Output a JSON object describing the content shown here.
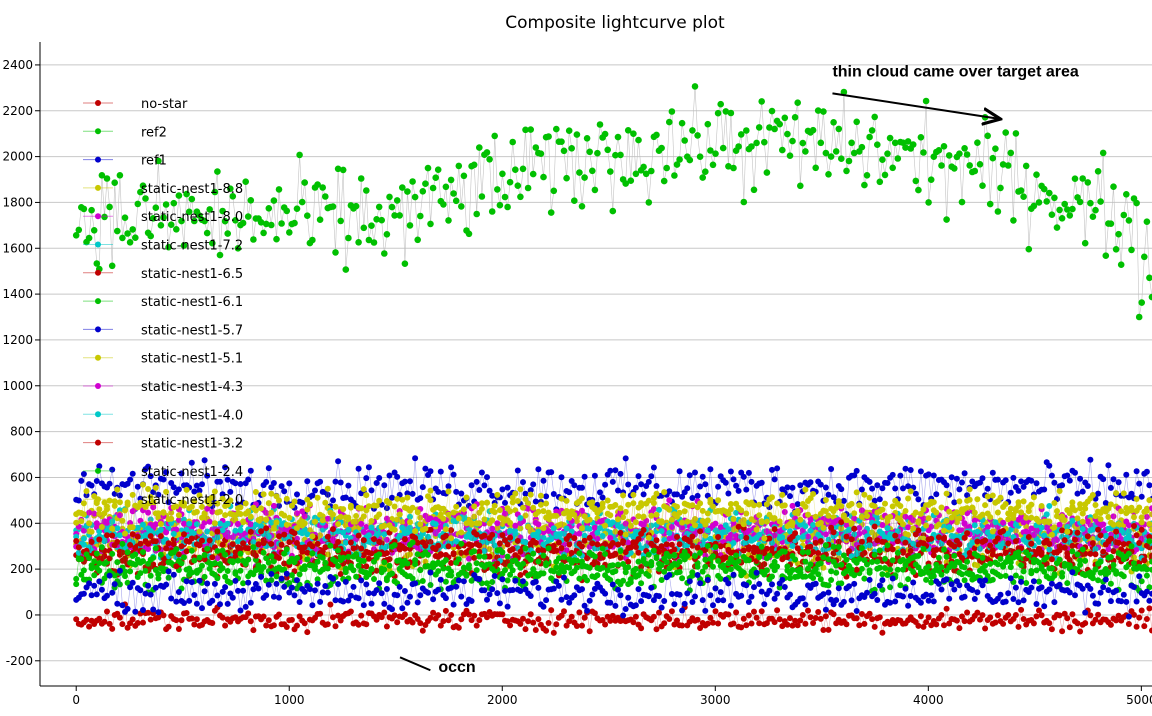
{
  "chart_data": {
    "type": "line",
    "title": "Composite lightcurve plot",
    "xlabel": "",
    "ylabel": "",
    "xlim": [
      -170,
      5050
    ],
    "ylim": [
      -310,
      2500
    ],
    "x_ticks": [
      0,
      1000,
      2000,
      3000,
      4000,
      5000
    ],
    "y_ticks": [
      -200,
      0,
      200,
      400,
      600,
      800,
      1000,
      1200,
      1400,
      1600,
      1800,
      2000,
      2200,
      2400
    ],
    "grid": true,
    "legend_position": "top-left",
    "annotations": [
      {
        "text": "thin cloud came over target area",
        "x": 3550,
        "y": 2350,
        "arrow_to": [
          4330,
          2165
        ]
      },
      {
        "text": "occn",
        "x": 1700,
        "y": -250,
        "arrow_to": [
          1520,
          -185
        ]
      }
    ],
    "series": [
      {
        "name": "no-star",
        "color": "#c00000",
        "marker": "dot",
        "shape": "flat",
        "base": -20,
        "noise": 35,
        "drift": 0
      },
      {
        "name": "ref2",
        "color": "#00c000",
        "marker": "dot",
        "shape": "hump",
        "base": 1750,
        "noise": 160,
        "drift": 330
      },
      {
        "name": "ref1",
        "color": "#0000cc",
        "marker": "dot",
        "shape": "flat",
        "base": 100,
        "noise": 60,
        "drift": 0
      },
      {
        "name": "static-nest1-8.8",
        "color": "#c8c800",
        "marker": "dash",
        "shape": "flat",
        "base": 300,
        "noise": 70,
        "drift": 0
      },
      {
        "name": "static-nest1-8.0",
        "color": "#d000d0",
        "marker": "dash",
        "shape": "flat",
        "base": 330,
        "noise": 70,
        "drift": 0
      },
      {
        "name": "static-nest1-7.2",
        "color": "#00c8c8",
        "marker": "dash",
        "shape": "flat",
        "base": 360,
        "noise": 70,
        "drift": 0
      },
      {
        "name": "static-nest1-6.5",
        "color": "#c00000",
        "marker": "dot",
        "shape": "flat",
        "base": 250,
        "noise": 60,
        "drift": 0
      },
      {
        "name": "static-nest1-6.1",
        "color": "#00c000",
        "marker": "dash",
        "shape": "flat",
        "base": 180,
        "noise": 50,
        "drift": 0
      },
      {
        "name": "static-nest1-5.7",
        "color": "#0000cc",
        "marker": "dot",
        "shape": "flat",
        "base": 560,
        "noise": 75,
        "drift": 0
      },
      {
        "name": "static-nest1-5.1",
        "color": "#c8c800",
        "marker": "dot",
        "shape": "flat",
        "base": 420,
        "noise": 80,
        "drift": 0
      },
      {
        "name": "static-nest1-4.3",
        "color": "#d000d0",
        "marker": "dot",
        "shape": "flat",
        "base": 390,
        "noise": 70,
        "drift": 0
      },
      {
        "name": "static-nest1-4.0",
        "color": "#00c8c8",
        "marker": "dot",
        "shape": "flat",
        "base": 340,
        "noise": 70,
        "drift": 0
      },
      {
        "name": "static-nest1-3.2",
        "color": "#c00000",
        "marker": "dot",
        "shape": "flat",
        "base": 300,
        "noise": 60,
        "drift": 0
      },
      {
        "name": "static-nest1-2.4",
        "color": "#00c000",
        "marker": "dot",
        "shape": "flat",
        "base": 230,
        "noise": 55,
        "drift": 0
      },
      {
        "name": "static-nest1-2.0",
        "color": "#c8c800",
        "marker": "dot",
        "shape": "flat",
        "base": 450,
        "noise": 70,
        "drift": 0
      }
    ]
  }
}
